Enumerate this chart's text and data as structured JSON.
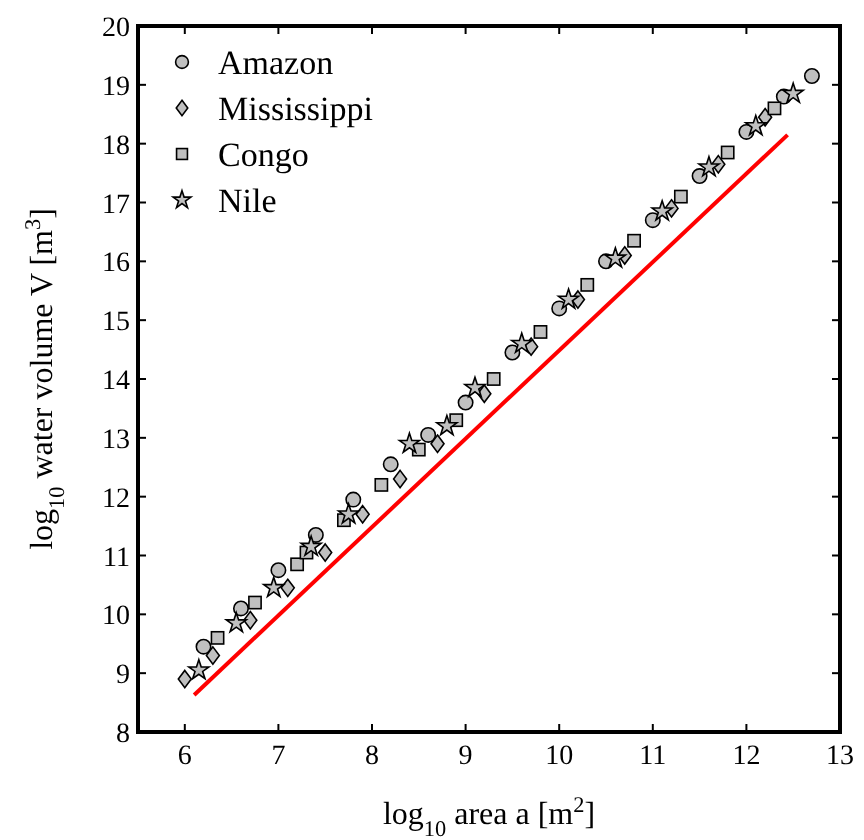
{
  "chart_data": {
    "type": "scatter",
    "xlabel": "log$_{10}$ area a [m$^{2}$]",
    "ylabel": "log$_{10}$ water volume V [m$^{3}$]",
    "xlim": [
      5.5,
      13
    ],
    "ylim": [
      8,
      20
    ],
    "xticks": [
      6,
      7,
      8,
      9,
      10,
      11,
      12,
      13
    ],
    "yticks": [
      8,
      9,
      10,
      11,
      12,
      13,
      14,
      15,
      16,
      17,
      18,
      19,
      20
    ],
    "grid": false,
    "legend": "top left",
    "series": [
      {
        "name": "Amazon",
        "color": "#c0c0c0",
        "marker": "circle",
        "x": [
          6.2,
          6.6,
          7.0,
          7.4,
          7.8,
          8.2,
          8.6,
          9.0,
          9.5,
          10.0,
          10.5,
          11.0,
          11.5,
          12.0,
          12.4,
          12.7
        ],
        "values": [
          9.45,
          10.1,
          10.75,
          11.35,
          11.95,
          12.55,
          13.05,
          13.6,
          14.45,
          15.2,
          16.0,
          16.7,
          17.45,
          18.2,
          18.8,
          19.15
        ]
      },
      {
        "name": "Mississippi",
        "color": "#c0c0c0",
        "marker": "diamond",
        "x": [
          6.0,
          6.3,
          6.7,
          7.1,
          7.5,
          7.9,
          8.3,
          8.7,
          9.2,
          9.7,
          10.2,
          10.7,
          11.2,
          11.7,
          12.2
        ],
        "values": [
          8.9,
          9.3,
          9.9,
          10.45,
          11.05,
          11.7,
          12.3,
          12.9,
          13.75,
          14.55,
          15.35,
          16.1,
          16.9,
          17.65,
          18.45
        ]
      },
      {
        "name": "Congo",
        "color": "#c0c0c0",
        "marker": "square",
        "x": [
          6.35,
          6.75,
          7.2,
          7.3,
          7.7,
          8.1,
          8.5,
          8.9,
          9.3,
          9.8,
          10.3,
          10.8,
          11.3,
          11.8,
          12.3
        ],
        "values": [
          9.6,
          10.2,
          10.85,
          11.05,
          11.6,
          12.2,
          12.8,
          13.3,
          14.0,
          14.8,
          15.6,
          16.35,
          17.1,
          17.85,
          18.6
        ]
      },
      {
        "name": "Nile",
        "color": "#c0c0c0",
        "marker": "star",
        "x": [
          6.15,
          6.55,
          6.95,
          7.35,
          7.75,
          8.4,
          8.8,
          9.1,
          9.6,
          10.1,
          10.6,
          11.1,
          11.6,
          12.1,
          12.5
        ],
        "values": [
          9.05,
          9.85,
          10.45,
          11.15,
          11.7,
          12.9,
          13.2,
          13.85,
          14.6,
          15.35,
          16.05,
          16.85,
          17.6,
          18.3,
          18.85
        ]
      },
      {
        "type": "line",
        "color": "#ff0000",
        "x": [
          6.1,
          12.44
        ],
        "values": [
          8.63,
          18.15
        ]
      }
    ]
  }
}
